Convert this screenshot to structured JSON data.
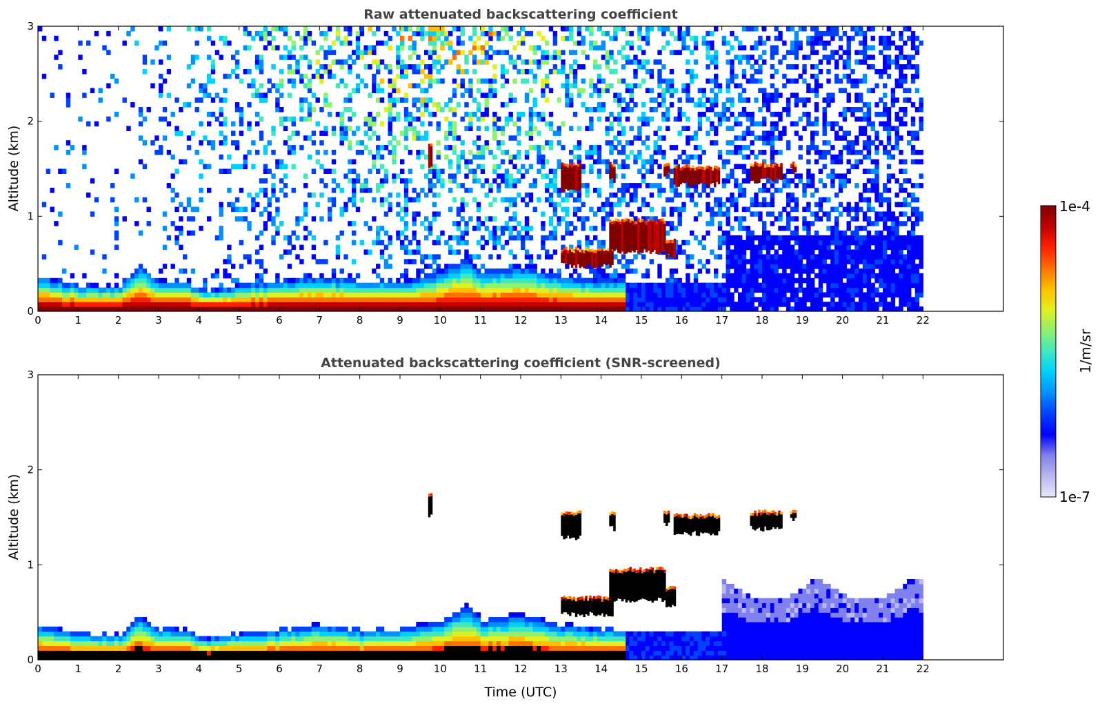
{
  "chart_data": [
    {
      "type": "heatmap",
      "title": "Raw attenuated backscattering coefficient",
      "xlabel": "",
      "ylabel": "Altitude (km)",
      "xlim": [
        0,
        24
      ],
      "ylim": [
        0,
        3
      ],
      "x_ticks": [
        "0",
        "1",
        "2",
        "3",
        "4",
        "5",
        "6",
        "7",
        "8",
        "9",
        "10",
        "11",
        "12",
        "13",
        "14",
        "15",
        "16",
        "17",
        "18",
        "19",
        "20",
        "21",
        "22"
      ],
      "y_ticks": [
        "0",
        "1",
        "2",
        "3"
      ],
      "data_time_range_utc": [
        0,
        22
      ],
      "screened": false,
      "boundary_layer_top_km": [
        [
          0,
          0.35
        ],
        [
          1,
          0.25
        ],
        [
          2,
          0.25
        ],
        [
          2.5,
          0.45
        ],
        [
          3,
          0.3
        ],
        [
          3.7,
          0.3
        ],
        [
          4,
          0.2
        ],
        [
          5,
          0.25
        ],
        [
          6,
          0.3
        ],
        [
          7,
          0.35
        ],
        [
          8,
          0.3
        ],
        [
          9,
          0.3
        ],
        [
          10,
          0.4
        ],
        [
          10.6,
          0.55
        ],
        [
          11,
          0.4
        ],
        [
          12,
          0.45
        ],
        [
          13,
          0.35
        ],
        [
          14,
          0.3
        ]
      ],
      "cloud_layers": [
        {
          "t_start": 9.7,
          "t_end": 9.8,
          "alt_km": [
            1.5,
            1.75
          ]
        },
        {
          "t_start": 13.0,
          "t_end": 13.5,
          "alt_km": [
            1.25,
            1.55
          ]
        },
        {
          "t_start": 14.2,
          "t_end": 14.35,
          "alt_km": [
            1.35,
            1.55
          ]
        },
        {
          "t_start": 15.55,
          "t_end": 15.7,
          "alt_km": [
            1.4,
            1.55
          ]
        },
        {
          "t_start": 15.8,
          "t_end": 16.95,
          "alt_km": [
            1.3,
            1.52
          ]
        },
        {
          "t_start": 17.7,
          "t_end": 18.5,
          "alt_km": [
            1.35,
            1.55
          ]
        },
        {
          "t_start": 18.7,
          "t_end": 18.85,
          "alt_km": [
            1.45,
            1.55
          ]
        },
        {
          "t_start": 13.0,
          "t_end": 14.3,
          "alt_km": [
            0.45,
            0.65
          ]
        },
        {
          "t_start": 14.2,
          "t_end": 15.6,
          "alt_km": [
            0.6,
            0.95
          ]
        },
        {
          "t_start": 15.6,
          "t_end": 15.85,
          "alt_km": [
            0.55,
            0.75
          ]
        }
      ],
      "noise_background": "increasing toward upper-middle (07–12 UTC, 2–3 km); dense blue near surface after 17 UTC"
    },
    {
      "type": "heatmap",
      "title": "Attenuated backscattering coefficient (SNR-screened)",
      "xlabel": "Time (UTC)",
      "ylabel": "Altitude (km)",
      "xlim": [
        0,
        24
      ],
      "ylim": [
        0,
        3
      ],
      "x_ticks": [
        "0",
        "1",
        "2",
        "3",
        "4",
        "5",
        "6",
        "7",
        "8",
        "9",
        "10",
        "11",
        "12",
        "13",
        "14",
        "15",
        "16",
        "17",
        "18",
        "19",
        "20",
        "21",
        "22"
      ],
      "y_ticks": [
        "0",
        "1",
        "2",
        "3"
      ],
      "data_time_range_utc": [
        0,
        22
      ],
      "screened": true,
      "screened_out_color": "#ffffff",
      "saturated_color": "#000000",
      "high_noise_region": {
        "t_start": 17,
        "t_end": 22,
        "alt_km": [
          0,
          0.85
        ]
      }
    }
  ],
  "colorbar": {
    "min_label": "1e-7",
    "max_label": "1e-4",
    "unit_label": "1/m/sr",
    "colors": [
      "#e8e8f8",
      "#b8b8ee",
      "#8080ee",
      "#0000ff",
      "#0040ff",
      "#0090ff",
      "#00d0ff",
      "#40e8c0",
      "#90f070",
      "#e0f020",
      "#ffc000",
      "#ff7000",
      "#ff2000",
      "#c00000",
      "#800000"
    ]
  }
}
